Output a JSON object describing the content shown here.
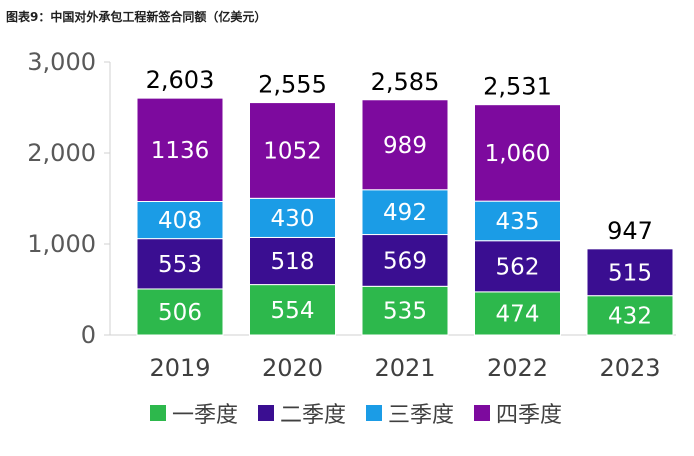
{
  "figure_title": "图表9：中国对外承包工程新签合同额（亿美元）",
  "colors": {
    "q1": "#2DB84C",
    "q2": "#3A0E91",
    "q3": "#1B9CE6",
    "q4": "#7D0A9E"
  },
  "legend": [
    {
      "label": "一季度",
      "color": "#2DB84C"
    },
    {
      "label": "二季度",
      "color": "#3A0E91"
    },
    {
      "label": "三季度",
      "color": "#1B9CE6"
    },
    {
      "label": "四季度",
      "color": "#7D0A9E"
    }
  ],
  "chart_data": {
    "type": "bar",
    "stacked": true,
    "categories": [
      "2019",
      "2020",
      "2021",
      "2022",
      "2023"
    ],
    "series": [
      {
        "name": "一季度",
        "values": [
          506,
          554,
          535,
          474,
          432
        ],
        "labels": [
          "506",
          "554",
          "535",
          "474",
          "432"
        ]
      },
      {
        "name": "二季度",
        "values": [
          553,
          518,
          569,
          562,
          515
        ],
        "labels": [
          "553",
          "518",
          "569",
          "562",
          "515"
        ]
      },
      {
        "name": "三季度",
        "values": [
          408,
          430,
          492,
          435,
          null
        ],
        "labels": [
          "408",
          "430",
          "492",
          "435",
          ""
        ]
      },
      {
        "name": "四季度",
        "values": [
          1136,
          1052,
          989,
          1060,
          null
        ],
        "labels": [
          "1136",
          "1052",
          "989",
          "1,060",
          ""
        ]
      }
    ],
    "totals": [
      "2,603",
      "2,555",
      "2,585",
      "2,531",
      "947"
    ],
    "yticks": [
      "0",
      "1,000",
      "2,000",
      "3,000"
    ],
    "ylim": [
      0,
      3000
    ],
    "grid": false,
    "legend_position": "bottom"
  }
}
